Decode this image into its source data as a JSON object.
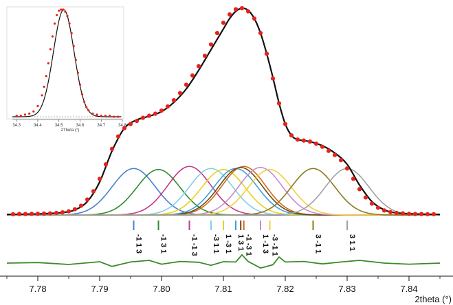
{
  "chart_data": [
    {
      "type": "line",
      "xlabel": "2theta (°)",
      "xlim": [
        7.775,
        7.845
      ],
      "xticks": [
        "7.78",
        "7.79",
        "7.80",
        "7.81",
        "7.82",
        "7.83",
        "7.84"
      ],
      "xtick_values": [
        7.78,
        7.79,
        7.8,
        7.81,
        7.82,
        7.83,
        7.84
      ],
      "grid": false,
      "legend": "none",
      "colors": {
        "observed": "#e8221b",
        "calculated": "#111111",
        "difference": "#3a8a2a"
      },
      "observed_points": {
        "x": [
          7.776,
          7.777,
          7.778,
          7.779,
          7.78,
          7.781,
          7.782,
          7.783,
          7.784,
          7.785,
          7.786,
          7.787,
          7.788,
          7.789,
          7.79,
          7.791,
          7.792,
          7.793,
          7.794,
          7.795,
          7.796,
          7.797,
          7.798,
          7.799,
          7.8,
          7.801,
          7.802,
          7.803,
          7.804,
          7.805,
          7.806,
          7.807,
          7.808,
          7.809,
          7.81,
          7.811,
          7.812,
          7.813,
          7.814,
          7.815,
          7.816,
          7.817,
          7.818,
          7.819,
          7.82,
          7.821,
          7.822,
          7.823,
          7.824,
          7.825,
          7.826,
          7.827,
          7.828,
          7.829,
          7.83,
          7.831,
          7.832,
          7.833,
          7.834,
          7.835,
          7.836,
          7.837,
          7.838,
          7.839,
          7.84,
          7.841,
          7.842,
          7.843,
          7.844
        ],
        "y": [
          0.004,
          0.005,
          0.005,
          0.006,
          0.006,
          0.007,
          0.008,
          0.01,
          0.013,
          0.018,
          0.028,
          0.045,
          0.075,
          0.115,
          0.175,
          0.245,
          0.32,
          0.38,
          0.42,
          0.44,
          0.455,
          0.47,
          0.48,
          0.49,
          0.505,
          0.525,
          0.555,
          0.59,
          0.63,
          0.675,
          0.72,
          0.77,
          0.825,
          0.88,
          0.93,
          0.97,
          0.995,
          1.0,
          0.985,
          0.95,
          0.88,
          0.78,
          0.66,
          0.54,
          0.44,
          0.385,
          0.365,
          0.36,
          0.355,
          0.345,
          0.33,
          0.31,
          0.29,
          0.265,
          0.225,
          0.175,
          0.125,
          0.085,
          0.055,
          0.035,
          0.022,
          0.014,
          0.01,
          0.008,
          0.006,
          0.005,
          0.005,
          0.004,
          0.004
        ]
      },
      "calculated_curve": {
        "x": [
          7.775,
          7.778,
          7.781,
          7.784,
          7.786,
          7.788,
          7.79,
          7.792,
          7.794,
          7.796,
          7.798,
          7.8,
          7.802,
          7.804,
          7.806,
          7.808,
          7.81,
          7.811,
          7.812,
          7.813,
          7.814,
          7.815,
          7.816,
          7.817,
          7.818,
          7.819,
          7.82,
          7.821,
          7.822,
          7.824,
          7.826,
          7.828,
          7.83,
          7.832,
          7.834,
          7.836,
          7.838,
          7.841,
          7.845
        ],
        "y": [
          0.003,
          0.004,
          0.006,
          0.012,
          0.025,
          0.065,
          0.16,
          0.31,
          0.42,
          0.46,
          0.478,
          0.5,
          0.545,
          0.61,
          0.7,
          0.8,
          0.9,
          0.95,
          0.985,
          1.0,
          0.99,
          0.95,
          0.88,
          0.78,
          0.665,
          0.54,
          0.44,
          0.385,
          0.365,
          0.355,
          0.335,
          0.3,
          0.245,
          0.145,
          0.065,
          0.025,
          0.01,
          0.005,
          0.003
        ]
      },
      "components": [
        {
          "label": "-1 1 3",
          "center": 7.7955,
          "color": "#4a7fd0",
          "peak": 0.225
        },
        {
          "label": "-1 3 1",
          "center": 7.7995,
          "color": "#2e8b2e",
          "peak": 0.22
        },
        {
          "label": "-1 -1 3",
          "center": 7.8045,
          "color": "#c23a8a",
          "peak": 0.235
        },
        {
          "label": "-3 1 1",
          "center": 7.808,
          "color": "#7fd0e8",
          "peak": 0.225
        },
        {
          "label": "1 -3 1",
          "center": 7.81,
          "color": "#e8d020",
          "peak": 0.22
        },
        {
          "label": "1 3 1",
          "center": 7.812,
          "color": "#3aa0d8",
          "peak": 0.225
        },
        {
          "label": "-1 -3 1",
          "center": 7.8133,
          "color": "#d06a1a",
          "peak": 0.235
        },
        {
          "label": "",
          "center": 7.8128,
          "color": "#6a4a1a",
          "peak": 0.23
        },
        {
          "label": "1 -1 3",
          "center": 7.816,
          "color": "#c88ad0",
          "peak": 0.23
        },
        {
          "label": "-3 -1 1",
          "center": 7.8175,
          "color": "#f0d040",
          "peak": 0.22
        },
        {
          "label": "3 -1 1",
          "center": 7.8245,
          "color": "#8a7a1a",
          "peak": 0.225
        },
        {
          "label": "3 1 1",
          "center": 7.83,
          "color": "#a0a0a0",
          "peak": 0.225
        }
      ],
      "difference": {
        "x": [
          7.775,
          7.78,
          7.785,
          7.79,
          7.792,
          7.795,
          7.798,
          7.8,
          7.803,
          7.806,
          7.808,
          7.81,
          7.812,
          7.813,
          7.814,
          7.816,
          7.818,
          7.819,
          7.82,
          7.823,
          7.826,
          7.829,
          7.832,
          7.836,
          7.84,
          7.845
        ],
        "y": [
          0.0,
          0.002,
          -0.005,
          0.005,
          -0.012,
          0.004,
          0.01,
          -0.004,
          0.006,
          0.003,
          -0.008,
          0.005,
          0.004,
          0.03,
          0.006,
          -0.018,
          -0.006,
          0.022,
          0.004,
          0.006,
          -0.003,
          0.004,
          0.01,
          0.0,
          -0.004,
          0.0
        ]
      }
    },
    {
      "type": "line",
      "xlabel": "2Theta (°)",
      "xlim": [
        34.28,
        34.8
      ],
      "xticks": [
        "34.3",
        "34.4",
        "34.5",
        "34.6",
        "34.7",
        "34.8"
      ],
      "xtick_values": [
        34.3,
        34.4,
        34.5,
        34.6,
        34.7,
        34.8
      ],
      "grid": false,
      "legend": "none",
      "peak": {
        "center": 34.523,
        "fwhm": 0.115
      },
      "observed_x": [
        34.3,
        34.32,
        34.34,
        34.36,
        34.38,
        34.4,
        34.42,
        34.43,
        34.44,
        34.45,
        34.46,
        34.47,
        34.48,
        34.49,
        34.5,
        34.51,
        34.52,
        34.53,
        34.54,
        34.55,
        34.56,
        34.57,
        34.58,
        34.59,
        34.6,
        34.61,
        34.62,
        34.63,
        34.64,
        34.66,
        34.68,
        34.7,
        34.72,
        34.74,
        34.76,
        34.78
      ],
      "observed_y": [
        0.01,
        0.01,
        0.02,
        0.03,
        0.05,
        0.1,
        0.2,
        0.28,
        0.38,
        0.5,
        0.63,
        0.75,
        0.87,
        0.95,
        0.99,
        1.0,
        1.0,
        0.98,
        0.94,
        0.87,
        0.78,
        0.66,
        0.53,
        0.41,
        0.3,
        0.21,
        0.14,
        0.09,
        0.06,
        0.03,
        0.02,
        0.01,
        0.01,
        0.01,
        0.0,
        0.0
      ]
    }
  ]
}
